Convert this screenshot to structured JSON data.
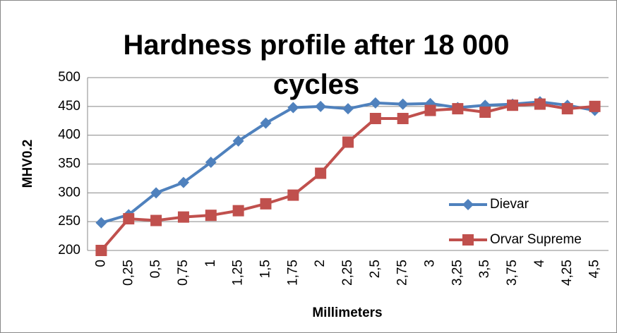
{
  "chart_data": {
    "type": "line",
    "title": "Hardness profile after 18 000 cycles",
    "x_label": "Millimeters",
    "y_label": "MHV0.2",
    "categories": [
      "0",
      "0,25",
      "0,5",
      "0,75",
      "1",
      "1,25",
      "1,5",
      "1,75",
      "2",
      "2,25",
      "2,5",
      "2,75",
      "3",
      "3,25",
      "3,5",
      "3,75",
      "4",
      "4,25",
      "4,5"
    ],
    "series": [
      {
        "name": "Dievar",
        "color": "#4f81bd",
        "marker": "diamond",
        "values": [
          248,
          262,
          300,
          318,
          353,
          390,
          421,
          448,
          450,
          446,
          456,
          454,
          455,
          448,
          452,
          454,
          458,
          452,
          443
        ]
      },
      {
        "name": "Orvar Supreme",
        "color": "#c0504d",
        "marker": "square",
        "values": [
          200,
          255,
          252,
          258,
          261,
          269,
          281,
          296,
          334,
          388,
          429,
          429,
          443,
          446,
          440,
          452,
          454,
          446,
          450
        ]
      }
    ],
    "ylim": [
      200,
      500
    ],
    "yticks": [
      200,
      250,
      300,
      350,
      400,
      450,
      500
    ],
    "grid": true,
    "legend": "right"
  }
}
